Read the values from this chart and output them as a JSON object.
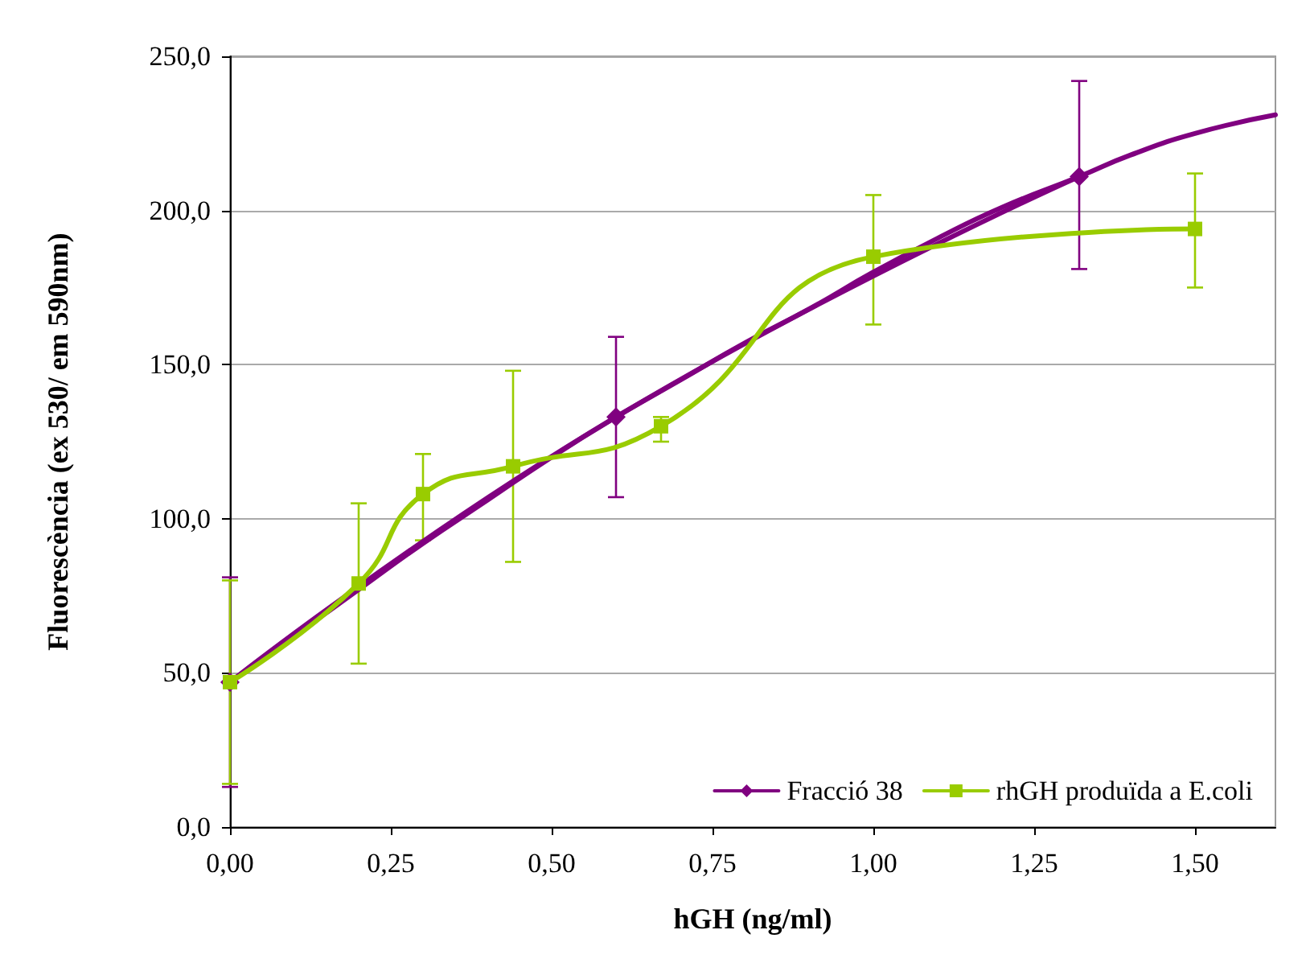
{
  "chart_data": {
    "type": "line",
    "xlabel": "hGH (ng/ml)",
    "ylabel": "Fluorescència (ex 530/ em 590nm)",
    "xlim": [
      0,
      1.625
    ],
    "xticks": [
      {
        "value": 0,
        "label": "0,00"
      },
      {
        "value": 0.25,
        "label": "0,25"
      },
      {
        "value": 0.5,
        "label": "0,50"
      },
      {
        "value": 0.75,
        "label": "0,75"
      },
      {
        "value": 1,
        "label": "1,00"
      },
      {
        "value": 1.25,
        "label": "1,25"
      },
      {
        "value": 1.5,
        "label": "1,50"
      }
    ],
    "ylim": [
      0,
      250
    ],
    "yticks": [
      {
        "value": 0,
        "label": "0,0"
      },
      {
        "value": 50,
        "label": "50,0"
      },
      {
        "value": 100,
        "label": "100,0"
      },
      {
        "value": 150,
        "label": "150,0"
      },
      {
        "value": 200,
        "label": "200,0"
      },
      {
        "value": 250,
        "label": "250,0"
      }
    ],
    "grid": "y",
    "legend": "bottom right",
    "line_style": "solid",
    "series": [
      {
        "name": "Fracció 38",
        "marker": "diamond",
        "color": "#800080",
        "x": [
          0,
          0.6,
          1.32
        ],
        "values": [
          47,
          133,
          211
        ],
        "errors": [
          [
            13,
            81
          ],
          [
            107,
            159
          ],
          [
            181,
            242
          ]
        ]
      },
      {
        "type": "line",
        "marker": "none",
        "color": "#800080",
        "x": [
          0,
          0.1,
          0.2,
          0.3,
          0.4,
          0.5,
          0.6,
          0.7,
          0.8,
          0.9,
          1.0,
          1.1,
          1.2,
          1.32,
          1.4,
          1.5,
          1.625
        ],
        "values": [
          47,
          62,
          77,
          92,
          106,
          120,
          133,
          145,
          157,
          168,
          180,
          191,
          201,
          211,
          218,
          225,
          231
        ]
      },
      {
        "name": "rhGH produïda a E.coli",
        "marker": "square",
        "color": "#99cc00",
        "x": [
          0,
          0.2,
          0.3,
          0.44,
          0.67,
          1.0,
          1.5
        ],
        "values": [
          47,
          79,
          108,
          117,
          130,
          185,
          194
        ],
        "errors": [
          [
            14,
            80
          ],
          [
            53,
            105
          ],
          [
            93,
            121
          ],
          [
            86,
            148
          ],
          [
            125,
            133
          ],
          [
            163,
            205
          ],
          [
            175,
            212
          ]
        ]
      }
    ]
  }
}
